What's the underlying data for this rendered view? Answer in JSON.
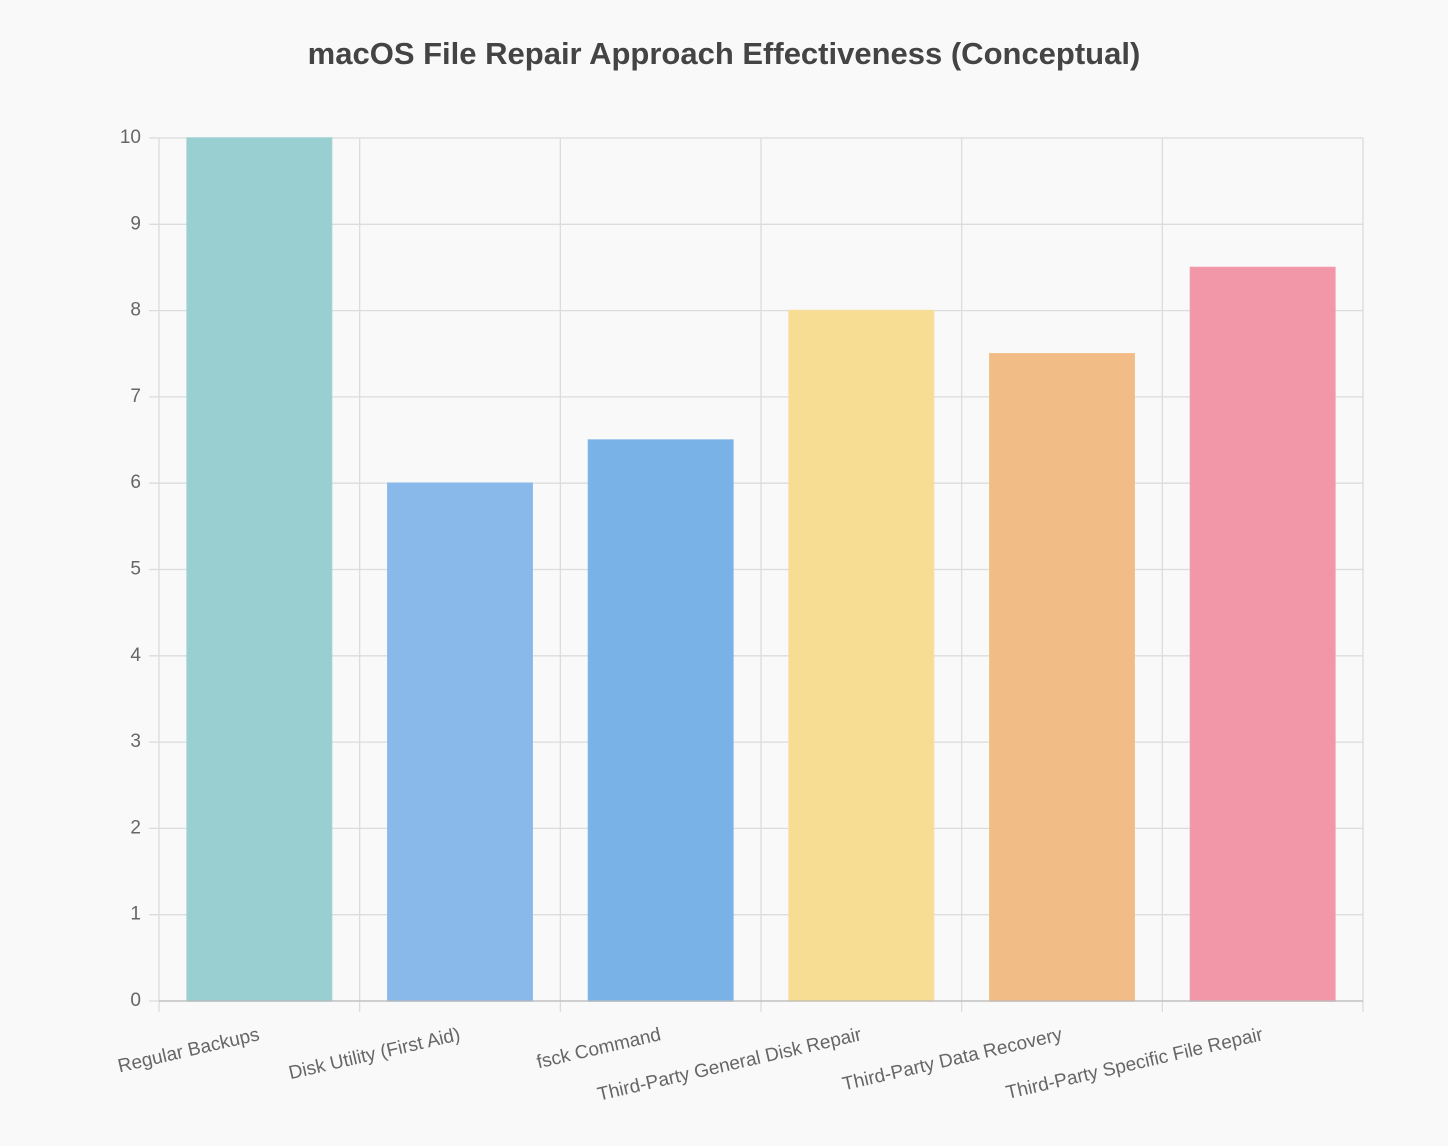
{
  "chart_data": {
    "type": "bar",
    "title": "macOS File Repair Approach Effectiveness (Conceptual)",
    "categories": [
      "Regular Backups",
      "Disk Utility (First Aid)",
      "fsck Command",
      "Third-Party General Disk Repair",
      "Third-Party Data Recovery",
      "Third-Party Specific File Repair"
    ],
    "values": [
      10,
      6,
      6.5,
      8,
      7.5,
      8.5
    ],
    "colors": [
      "#99cfd1",
      "#89b8ea",
      "#79b2e7",
      "#f7dd93",
      "#f2bc86",
      "#f197a8"
    ],
    "ylim": [
      0,
      10
    ],
    "yticks": [
      0,
      1,
      2,
      3,
      4,
      5,
      6,
      7,
      8,
      9,
      10
    ],
    "grid": true
  }
}
